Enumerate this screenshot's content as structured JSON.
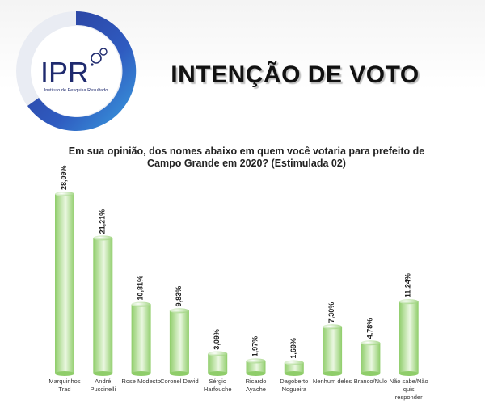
{
  "logo": {
    "text": "IPR",
    "subtitle": "Instituto de Pesquisa Resultado",
    "colors": {
      "ring_dark": "#2a3a96",
      "ring_light": "#3aa0e0",
      "text": "#1f2a6e"
    }
  },
  "title": "INTENÇÃO DE VOTO",
  "question_lines": [
    "Em sua opinião, dos nomes abaixo em quem você votaria para prefeito de",
    "Campo Grande em 2020? (Estimulada 02)"
  ],
  "chart_data": {
    "type": "bar",
    "categories": [
      [
        "Marquinhos",
        "Trad"
      ],
      [
        "André",
        "Puccinelli"
      ],
      [
        "Rose Modesto"
      ],
      [
        "Coronel David"
      ],
      [
        "Sérgio",
        "Harfouche"
      ],
      [
        "Ricardo",
        "Ayache"
      ],
      [
        "Dagoberto",
        "Nogueira"
      ],
      [
        "Nenhum deles"
      ],
      [
        "Branco/Nulo"
      ],
      [
        "Não sabe/Não",
        "quis",
        "responder"
      ]
    ],
    "values": [
      28.09,
      21.21,
      10.81,
      9.83,
      3.09,
      1.97,
      1.69,
      7.3,
      4.78,
      11.24
    ],
    "value_labels": [
      "28,09%",
      "21,21%",
      "10,81%",
      "9,83%",
      "3,09%",
      "1,97%",
      "1,69%",
      "7,30%",
      "4,78%",
      "11,24%"
    ],
    "ylim": [
      0,
      28.09
    ],
    "bar_color_light": "#eaf7e0",
    "bar_color_dark": "#8fcd6a",
    "grid": false,
    "legend": "none"
  }
}
